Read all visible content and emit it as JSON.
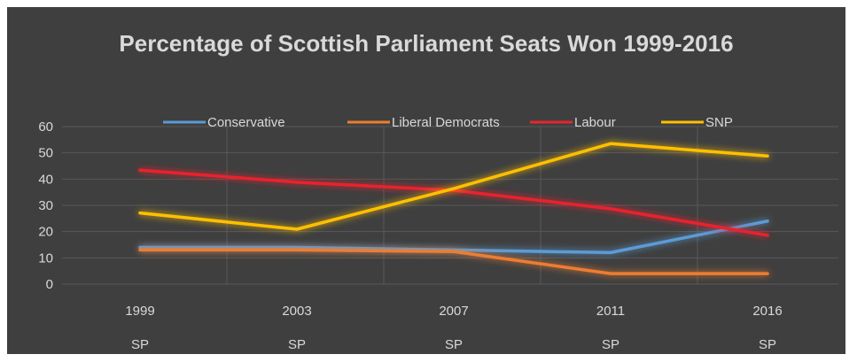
{
  "chart_data": {
    "type": "line",
    "title": "Percentage of Scottish Parliament Seats Won 1999-2016",
    "categories": [
      "1999",
      "2003",
      "2007",
      "2011",
      "2016"
    ],
    "category_sublabels": [
      "SP",
      "SP",
      "SP",
      "SP",
      "SP"
    ],
    "ylim": [
      0,
      60
    ],
    "yticks": [
      "0",
      "10",
      "20",
      "30",
      "40",
      "50",
      "60"
    ],
    "grid": true,
    "legend_position": "top",
    "series": [
      {
        "name": "Conservative",
        "color": "#5b9bd5",
        "values": [
          14,
          14,
          13,
          12,
          24
        ]
      },
      {
        "name": "Liberal Democrats",
        "color": "#ed7d31",
        "values": [
          13,
          13,
          12.4,
          4,
          4
        ]
      },
      {
        "name": "Labour",
        "color": "#e8242d",
        "values": [
          43.4,
          38.8,
          35.7,
          28.7,
          18.6
        ]
      },
      {
        "name": "SNP",
        "color": "#ffc000",
        "values": [
          27.1,
          20.9,
          36.4,
          53.5,
          48.8
        ]
      }
    ]
  }
}
